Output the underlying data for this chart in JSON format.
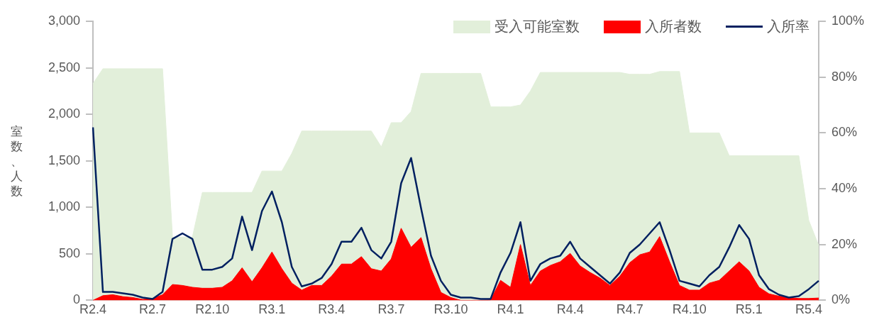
{
  "chart_data": {
    "type": "line",
    "ylabel": "室数、人数",
    "legend": "top right",
    "grid": false,
    "categories": [
      "R2.4",
      null,
      null,
      null,
      null,
      null,
      "R2.7",
      null,
      null,
      null,
      null,
      null,
      "R2.10",
      null,
      null,
      null,
      null,
      null,
      "R3.1",
      null,
      null,
      null,
      null,
      null,
      "R3.4",
      null,
      null,
      null,
      null,
      null,
      "R3.7",
      null,
      null,
      null,
      null,
      null,
      "R3.10",
      null,
      null,
      null,
      null,
      null,
      "R4.1",
      null,
      null,
      null,
      null,
      null,
      "R4.4",
      null,
      null,
      null,
      null,
      null,
      "R4.7",
      null,
      null,
      null,
      null,
      null,
      "R4.10",
      null,
      null,
      null,
      null,
      null,
      "R5.1",
      null,
      null,
      null,
      null,
      null,
      "R5.4",
      null
    ],
    "series": [
      {
        "name": "受入可能室数",
        "type": "area",
        "color": "#e2efda",
        "values": [
          2330,
          2490,
          2490,
          2490,
          2490,
          2490,
          2490,
          2490,
          680,
          680,
          680,
          1160,
          1160,
          1160,
          1160,
          1160,
          1160,
          1390,
          1390,
          1390,
          1580,
          1820,
          1820,
          1820,
          1820,
          1820,
          1820,
          1820,
          1820,
          1650,
          1910,
          1910,
          2030,
          2440,
          2440,
          2440,
          2440,
          2440,
          2440,
          2440,
          2080,
          2080,
          2080,
          2100,
          2250,
          2450,
          2450,
          2450,
          2450,
          2450,
          2450,
          2450,
          2450,
          2450,
          2430,
          2430,
          2430,
          2460,
          2460,
          2460,
          1800,
          1800,
          1800,
          1800,
          1555,
          1555,
          1555,
          1555,
          1555,
          1555,
          1555,
          1555,
          860,
          590
        ]
      },
      {
        "name": "入所者数",
        "type": "area",
        "color": "#ff0000",
        "values": [
          0,
          50,
          60,
          40,
          30,
          10,
          20,
          60,
          170,
          160,
          140,
          130,
          130,
          140,
          210,
          350,
          200,
          350,
          520,
          340,
          185,
          110,
          160,
          160,
          260,
          390,
          390,
          470,
          340,
          315,
          445,
          775,
          570,
          675,
          340,
          85,
          30,
          0,
          0,
          0,
          5,
          215,
          140,
          600,
          160,
          315,
          375,
          415,
          505,
          370,
          300,
          240,
          160,
          260,
          405,
          490,
          520,
          685,
          415,
          160,
          110,
          110,
          185,
          215,
          315,
          415,
          315,
          140,
          70,
          45,
          30,
          20,
          20,
          25
        ]
      },
      {
        "name": "入所率",
        "color": "#002060",
        "axis": "y2",
        "values": [
          62,
          3,
          3,
          2.5,
          2,
          1,
          0.5,
          3,
          22,
          24,
          22,
          11,
          11,
          12,
          15,
          30,
          18,
          32,
          39,
          28,
          12,
          5,
          6,
          8,
          13,
          21,
          21,
          26,
          18,
          15,
          21,
          42,
          51,
          33,
          16,
          7,
          2,
          1,
          1,
          0.5,
          0.5,
          10,
          17,
          28,
          7,
          13,
          15,
          16,
          21,
          15,
          12,
          9,
          6,
          10,
          17,
          20,
          24,
          28,
          18,
          7,
          6,
          5,
          9,
          12,
          19,
          27,
          22,
          9,
          4,
          2,
          1,
          1.5,
          4,
          7
        ]
      }
    ],
    "ylim": [
      0,
      3000
    ],
    "yticks": [
      {
        "value": 0,
        "label": "0"
      },
      {
        "value": 500,
        "label": "500"
      },
      {
        "value": 1000,
        "label": "1,000"
      },
      {
        "value": 1500,
        "label": "1,500"
      },
      {
        "value": 2000,
        "label": "2,000"
      },
      {
        "value": 2500,
        "label": "2,500"
      },
      {
        "value": 3000,
        "label": "3,000"
      }
    ],
    "y2lim": [
      0,
      100
    ],
    "y2ticks": [
      {
        "value": 0,
        "label": "0%"
      },
      {
        "value": 20,
        "label": "20%"
      },
      {
        "value": 40,
        "label": "40%"
      },
      {
        "value": 60,
        "label": "60%"
      },
      {
        "value": 80,
        "label": "80%"
      },
      {
        "value": 100,
        "label": "100%"
      }
    ]
  }
}
